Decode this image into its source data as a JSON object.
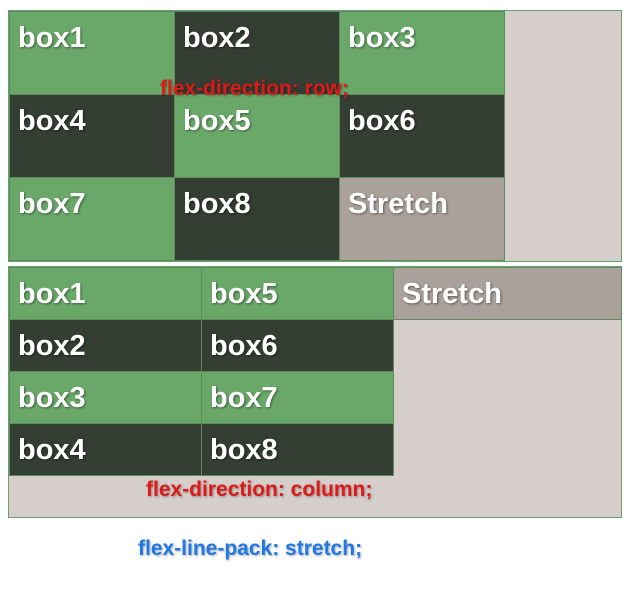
{
  "row_panel": {
    "caption": "flex-direction: row;",
    "boxes": [
      {
        "label": "box1"
      },
      {
        "label": "box2"
      },
      {
        "label": "box3"
      },
      {
        "label": "box4"
      },
      {
        "label": "box5"
      },
      {
        "label": "box6"
      },
      {
        "label": "box7"
      },
      {
        "label": "box8"
      },
      {
        "label": "Stretch"
      }
    ]
  },
  "column_panel": {
    "caption": "flex-direction: column;",
    "boxes": [
      {
        "label": "box1"
      },
      {
        "label": "box2"
      },
      {
        "label": "box3"
      },
      {
        "label": "box4"
      },
      {
        "label": "box5"
      },
      {
        "label": "box6"
      },
      {
        "label": "box7"
      },
      {
        "label": "box8"
      },
      {
        "label": "Stretch"
      }
    ]
  },
  "footer_caption": "flex-line-pack: stretch;",
  "colors": {
    "light_box": "#6aa86a",
    "dark_box": "#353e33",
    "stretch_box": "#aba19b",
    "container": "#d6ceca",
    "caption_red": "#dd1a1a",
    "caption_blue": "#1f79e6"
  }
}
